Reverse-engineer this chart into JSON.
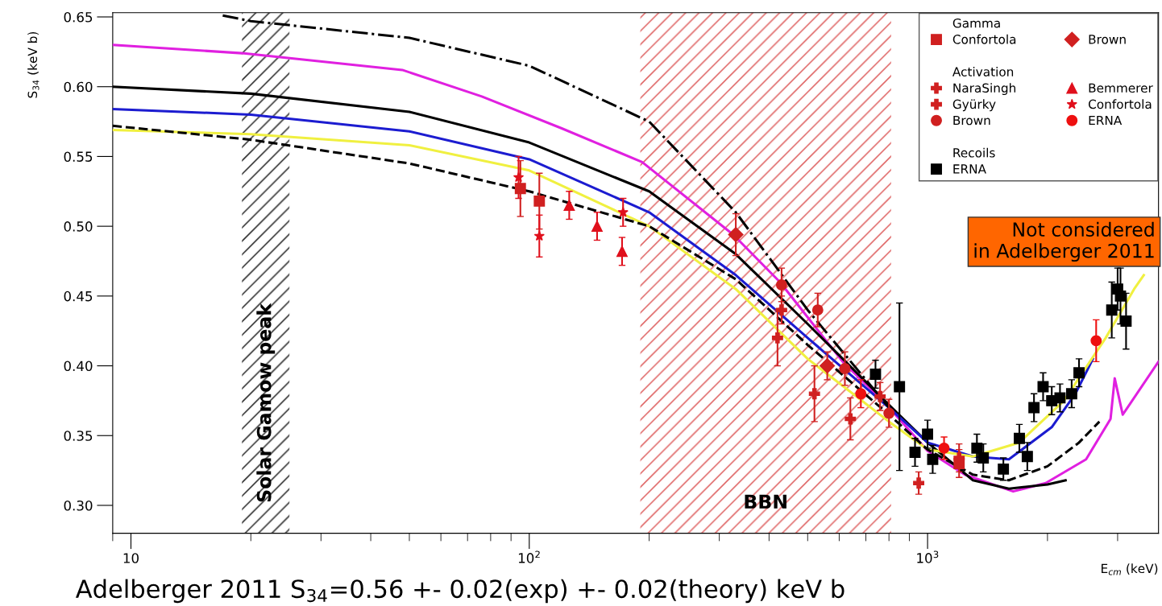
{
  "chart_data": {
    "type": "line",
    "ylabel": "S$_{34}$ (keV b)",
    "xlabel": "E$_{cm}$ (keV)",
    "log": "x",
    "xlim": [
      9,
      3800
    ],
    "ylim": [
      0.28,
      0.653
    ],
    "xticks": [
      10,
      {
        "value": 100,
        "label": "10$^{2}$"
      },
      {
        "value": 1000,
        "label": "10$^{3}$"
      }
    ],
    "yticks": [
      {
        "value": 0.3,
        "label": "0.30"
      },
      {
        "value": 0.35,
        "label": "0.35"
      },
      {
        "value": 0.4,
        "label": "0.40"
      },
      {
        "value": 0.45,
        "label": "0.45"
      },
      {
        "value": 0.5,
        "label": "0.50"
      },
      {
        "value": 0.55,
        "label": "0.55"
      },
      {
        "value": 0.6,
        "label": "0.60"
      },
      {
        "value": 0.65,
        "label": "0.65"
      }
    ],
    "grid": false,
    "legend": "top right",
    "bands": [
      {
        "axis": "x",
        "from": 19,
        "to": 25,
        "label": "Solar Gamow peak",
        "color": "#333333"
      },
      {
        "axis": "x",
        "from": 190,
        "to": 810,
        "label": "BBN",
        "color": "#e06a6a"
      }
    ],
    "annotations": [
      "Adelberger 2011 S$_{34}$=0.56 +- 0.02(exp) +- 0.02(theory) keV b",
      "Not considered\nin Adelberger 2011",
      "Gamma",
      "Activation",
      "Recoils"
    ],
    "series": [
      {
        "color": "#e020e0",
        "line_style": "solid",
        "x": [
          9,
          19,
          48,
          76,
          121,
          192,
          325,
          426,
          612,
          778,
          1000,
          1240,
          1640,
          1980,
          2500,
          2880,
          2950,
          3090,
          3800
        ],
        "values": [
          0.63,
          0.624,
          0.612,
          0.593,
          0.57,
          0.546,
          0.494,
          0.46,
          0.403,
          0.374,
          0.339,
          0.322,
          0.31,
          0.316,
          0.333,
          0.362,
          0.391,
          0.365,
          0.403
        ]
      },
      {
        "color": "#000000",
        "line_style": "solid",
        "x": [
          9,
          20,
          50,
          100,
          200,
          330,
          500,
          800,
          1000,
          1300,
          1600,
          2000,
          2220
        ],
        "values": [
          0.6,
          0.595,
          0.582,
          0.56,
          0.525,
          0.48,
          0.43,
          0.372,
          0.345,
          0.318,
          0.312,
          0.315,
          0.318
        ]
      },
      {
        "color": "#1c1cd0",
        "line_style": "solid",
        "x": [
          9,
          20,
          50,
          100,
          200,
          330,
          500,
          800,
          1000,
          1300,
          1600,
          2050,
          2350,
          2600
        ],
        "values": [
          0.584,
          0.58,
          0.568,
          0.548,
          0.51,
          0.465,
          0.42,
          0.37,
          0.345,
          0.335,
          0.333,
          0.356,
          0.38,
          0.405
        ]
      },
      {
        "color": "#f0f040",
        "line_style": "solid",
        "x": [
          9,
          20,
          50,
          100,
          200,
          330,
          500,
          800,
          1000,
          1300,
          1700,
          2200,
          2800,
          3300,
          3490
        ],
        "values": [
          0.569,
          0.566,
          0.558,
          0.54,
          0.5,
          0.455,
          0.405,
          0.36,
          0.34,
          0.335,
          0.345,
          0.375,
          0.42,
          0.455,
          0.465
        ]
      },
      {
        "color": "#000000",
        "line_style": "dashed",
        "x": [
          9,
          20,
          50,
          100,
          200,
          330,
          500,
          800,
          1000,
          1300,
          1600,
          2000,
          2400,
          2700
        ],
        "values": [
          0.572,
          0.562,
          0.545,
          0.525,
          0.5,
          0.462,
          0.415,
          0.365,
          0.34,
          0.322,
          0.318,
          0.328,
          0.345,
          0.36
        ]
      },
      {
        "color": "#000000",
        "line_style": "dashdot",
        "x": [
          17,
          20,
          50,
          100,
          200,
          330,
          500,
          700,
          800
        ],
        "values": [
          0.651,
          0.647,
          0.635,
          0.615,
          0.575,
          0.51,
          0.44,
          0.39,
          0.37
        ]
      },
      {
        "type": "scatter",
        "name": "Confortola",
        "color": "#d02020",
        "marker": "square",
        "x": [
          95,
          106,
          1200
        ],
        "values": [
          0.527,
          0.518,
          0.33
        ],
        "errors": [
          0.02,
          0.02,
          0.01
        ]
      },
      {
        "type": "scatter",
        "name": "Brown",
        "color": "#d02020",
        "marker": "diamond",
        "x": [
          330,
          560
        ],
        "values": [
          0.494,
          0.4
        ],
        "errors": [
          0.015,
          0.01
        ]
      },
      {
        "type": "scatter",
        "name": "NaraSingh",
        "color": "#d02020",
        "marker": "cross",
        "x": [
          420,
          520,
          640,
          950
        ],
        "values": [
          0.42,
          0.38,
          0.362,
          0.316
        ],
        "errors": [
          0.02,
          0.02,
          0.015,
          0.008
        ]
      },
      {
        "type": "scatter",
        "name": "Gyürky",
        "color": "#d02020",
        "marker": "cross",
        "x": [
          430,
          760,
          1200
        ],
        "values": [
          0.44,
          0.378,
          0.334
        ],
        "errors": [
          0.01,
          0.01,
          0.01
        ]
      },
      {
        "type": "scatter",
        "name": "Brown",
        "color": "#d02020",
        "marker": "circle",
        "x": [
          430,
          530,
          620,
          800
        ],
        "values": [
          0.458,
          0.44,
          0.398,
          0.366
        ],
        "errors": [
          0.012,
          0.012,
          0.012,
          0.01
        ]
      },
      {
        "type": "scatter",
        "name": "Bemmerer",
        "color": "#e0101c",
        "marker": "triangle",
        "x": [
          126,
          148,
          171
        ],
        "values": [
          0.515,
          0.5,
          0.482
        ],
        "errors": [
          0.01,
          0.01,
          0.01
        ]
      },
      {
        "type": "scatter",
        "name": "Confortola",
        "color": "#e0101c",
        "marker": "star",
        "x": [
          94,
          106,
          172
        ],
        "values": [
          0.535,
          0.493,
          0.51
        ],
        "errors": [
          0.015,
          0.015,
          0.01
        ]
      },
      {
        "type": "scatter",
        "name": "ERNA",
        "color": "#ee1010",
        "marker": "circle",
        "x": [
          680,
          1100,
          2650
        ],
        "values": [
          0.38,
          0.341,
          0.418
        ],
        "errors": [
          0.01,
          0.008,
          0.015
        ]
      },
      {
        "type": "scatter",
        "name": "ERNA",
        "color": "#000000",
        "marker": "square",
        "x": [
          740,
          850,
          930,
          1000,
          1030,
          1330,
          1380,
          1550,
          1700,
          1780,
          1850,
          1950,
          2050,
          2150,
          2300,
          2400,
          2900,
          3000,
          3050,
          3150
        ],
        "values": [
          0.394,
          0.385,
          0.338,
          0.351,
          0.333,
          0.341,
          0.334,
          0.326,
          0.348,
          0.335,
          0.37,
          0.385,
          0.375,
          0.377,
          0.38,
          0.395,
          0.44,
          0.455,
          0.45,
          0.432
        ],
        "errors": [
          0.01,
          0.06,
          0.01,
          0.01,
          0.01,
          0.01,
          0.01,
          0.008,
          0.01,
          0.01,
          0.01,
          0.01,
          0.01,
          0.01,
          0.01,
          0.01,
          0.02,
          0.015,
          0.02,
          0.02
        ]
      }
    ]
  }
}
